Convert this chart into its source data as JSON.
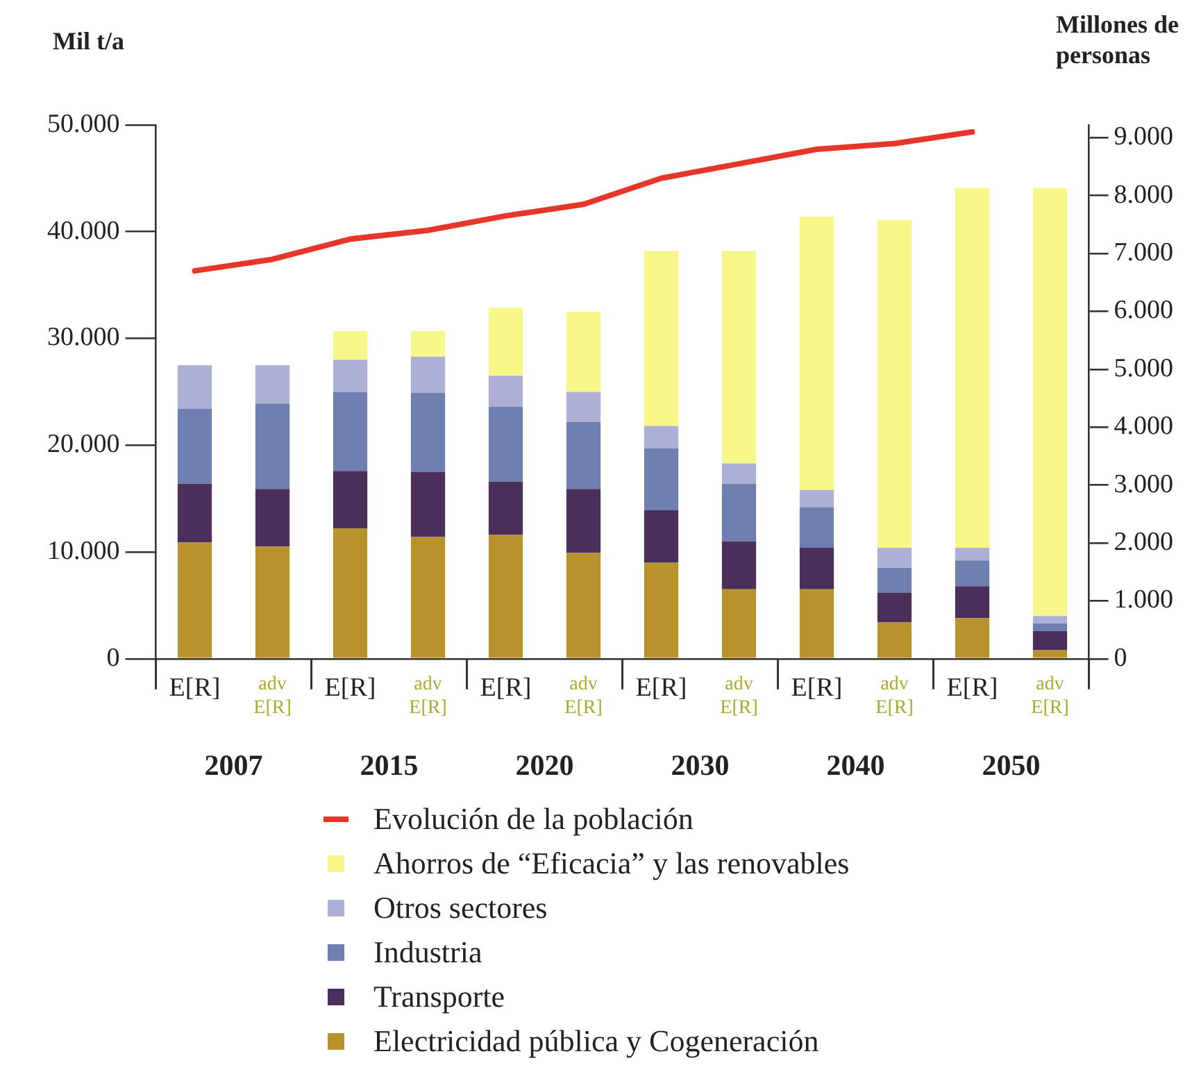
{
  "chart_data": {
    "type": "bar",
    "stacked": true,
    "ylabel": "Mil t/a",
    "y2label": "Millones de personas",
    "categories": [
      "E[R]",
      "adv E[R]",
      "E[R]",
      "adv E[R]",
      "E[R]",
      "adv E[R]",
      "E[R]",
      "adv E[R]",
      "E[R]",
      "adv E[R]",
      "E[R]",
      "adv E[R]"
    ],
    "annotations": [
      "2007",
      "2015",
      "2020",
      "2030",
      "2040",
      "2050"
    ],
    "series": [
      {
        "name": "Electricidad pública y Cogeneración",
        "color": "#b8922a",
        "values": [
          10900,
          10500,
          12200,
          11400,
          11600,
          9900,
          9000,
          6500,
          6500,
          3400,
          3800,
          800
        ]
      },
      {
        "name": "Transporte",
        "color": "#4a2f5a",
        "values": [
          5500,
          5400,
          5400,
          6100,
          5000,
          6000,
          4900,
          4500,
          3900,
          2800,
          3000,
          1800
        ]
      },
      {
        "name": "Industria",
        "color": "#6f7fb0",
        "values": [
          7000,
          8000,
          7400,
          7400,
          7000,
          6300,
          5800,
          5400,
          3800,
          2300,
          2400,
          700
        ]
      },
      {
        "name": "Otros sectores",
        "color": "#adb0d4",
        "values": [
          4100,
          3600,
          3000,
          3400,
          2900,
          2800,
          2100,
          1900,
          1600,
          1900,
          1200,
          700
        ]
      },
      {
        "name": "Ahorros de “Eficacia” y las renovables",
        "color": "#f7f78a",
        "values": [
          0,
          0,
          2700,
          2400,
          6400,
          7500,
          16400,
          19900,
          25600,
          30700,
          33700,
          40100
        ]
      },
      {
        "name": "Evolución de la población",
        "type": "line",
        "axis": "y2",
        "color": "#e8352a",
        "values": [
          6700,
          6900,
          7250,
          7400,
          7650,
          7850,
          8300,
          8550,
          8800,
          8900,
          9100,
          null
        ]
      }
    ],
    "ylim": [
      0,
      50000
    ],
    "yticks": [
      {
        "value": 0,
        "label": "0"
      },
      {
        "value": 10000,
        "label": "10.000"
      },
      {
        "value": 20000,
        "label": "20.000"
      },
      {
        "value": 30000,
        "label": "30.000"
      },
      {
        "value": 40000,
        "label": "40.000"
      },
      {
        "value": 50000,
        "label": "50.000"
      }
    ],
    "y2lim": [
      0,
      9220
    ],
    "y2ticks": [
      {
        "value": 0,
        "label": "0"
      },
      {
        "value": 1000,
        "label": "1.000"
      },
      {
        "value": 2000,
        "label": "2.000"
      },
      {
        "value": 3000,
        "label": "3.000"
      },
      {
        "value": 4000,
        "label": "4.000"
      },
      {
        "value": 5000,
        "label": "5.000"
      },
      {
        "value": 6000,
        "label": "6.000"
      },
      {
        "value": 7000,
        "label": "7.000"
      },
      {
        "value": 8000,
        "label": "8.000"
      },
      {
        "value": 9000,
        "label": "9.000"
      }
    ],
    "grid": false,
    "legend": "bottom"
  }
}
